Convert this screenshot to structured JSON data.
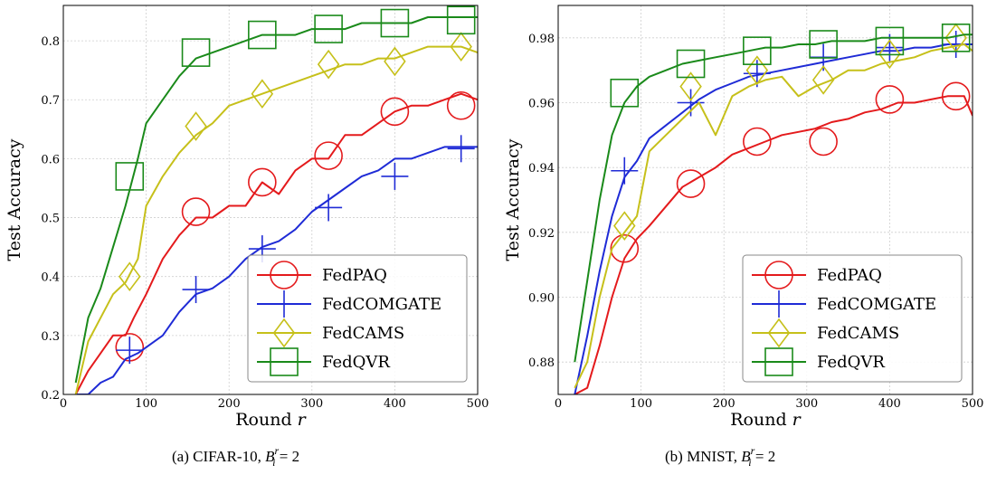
{
  "chart_data": [
    {
      "type": "line",
      "caption": "(a) CIFAR-10, B_i^r = 2",
      "caption_text": "(a) CIFAR-10, ",
      "caption_math": "B",
      "caption_sub": "i",
      "caption_sup": "r",
      "caption_eq": " = 2",
      "xlabel": "Round",
      "xlabel_var": "r",
      "ylabel": "Test Accuracy",
      "xlim": [
        0,
        500
      ],
      "ylim": [
        0.2,
        0.86
      ],
      "xticks": [
        0,
        100,
        200,
        300,
        400,
        500
      ],
      "yticks": [
        0.2,
        0.3,
        0.4,
        0.5,
        0.6,
        0.7,
        0.8
      ],
      "ytick_labels": [
        "0.2",
        "0.3",
        "0.4",
        "0.5",
        "0.6",
        "0.7",
        "0.8"
      ],
      "grid": true,
      "legend_position": "lower-right",
      "series": [
        {
          "name": "FedPAQ",
          "color": "#e41a1c",
          "marker": "circle",
          "x": [
            15,
            30,
            45,
            60,
            75,
            85,
            100,
            120,
            140,
            160,
            180,
            200,
            220,
            240,
            260,
            280,
            300,
            320,
            340,
            360,
            380,
            400,
            420,
            440,
            460,
            480,
            500
          ],
          "y": [
            0.2,
            0.24,
            0.27,
            0.3,
            0.3,
            0.33,
            0.37,
            0.43,
            0.47,
            0.5,
            0.5,
            0.52,
            0.52,
            0.56,
            0.54,
            0.58,
            0.6,
            0.6,
            0.64,
            0.64,
            0.66,
            0.68,
            0.69,
            0.69,
            0.7,
            0.71,
            0.7
          ],
          "markers_x": [
            80,
            160,
            240,
            320,
            400,
            480
          ],
          "markers_y": [
            0.28,
            0.51,
            0.56,
            0.605,
            0.68,
            0.69
          ]
        },
        {
          "name": "FedCOMGATE",
          "color": "#1f2bd6",
          "marker": "plus",
          "x": [
            15,
            30,
            45,
            60,
            75,
            90,
            100,
            120,
            140,
            160,
            180,
            200,
            220,
            240,
            260,
            280,
            300,
            320,
            340,
            360,
            380,
            400,
            420,
            440,
            460,
            480,
            500
          ],
          "y": [
            0.2,
            0.2,
            0.22,
            0.23,
            0.26,
            0.27,
            0.28,
            0.3,
            0.34,
            0.37,
            0.38,
            0.4,
            0.43,
            0.45,
            0.46,
            0.48,
            0.51,
            0.53,
            0.55,
            0.57,
            0.58,
            0.6,
            0.6,
            0.61,
            0.62,
            0.62,
            0.62
          ],
          "markers_x": [
            80,
            160,
            240,
            320,
            400,
            480
          ],
          "markers_y": [
            0.275,
            0.378,
            0.447,
            0.517,
            0.57,
            0.617
          ]
        },
        {
          "name": "FedCAMS",
          "color": "#c6c01a",
          "marker": "diamond",
          "x": [
            15,
            30,
            45,
            60,
            75,
            90,
            100,
            120,
            140,
            160,
            180,
            200,
            220,
            240,
            260,
            280,
            300,
            320,
            340,
            360,
            380,
            400,
            420,
            440,
            460,
            480,
            500
          ],
          "y": [
            0.2,
            0.29,
            0.33,
            0.37,
            0.39,
            0.43,
            0.52,
            0.57,
            0.61,
            0.64,
            0.66,
            0.69,
            0.7,
            0.71,
            0.72,
            0.73,
            0.74,
            0.75,
            0.76,
            0.76,
            0.77,
            0.77,
            0.78,
            0.79,
            0.79,
            0.79,
            0.78
          ],
          "markers_x": [
            80,
            160,
            240,
            320,
            400,
            480
          ],
          "markers_y": [
            0.4,
            0.655,
            0.71,
            0.76,
            0.765,
            0.79
          ]
        },
        {
          "name": "FedQVR",
          "color": "#1a8a1a",
          "marker": "square",
          "x": [
            15,
            30,
            45,
            60,
            75,
            90,
            100,
            120,
            140,
            160,
            180,
            200,
            220,
            240,
            260,
            280,
            300,
            320,
            340,
            360,
            380,
            400,
            420,
            440,
            460,
            480,
            500
          ],
          "y": [
            0.22,
            0.33,
            0.38,
            0.45,
            0.52,
            0.6,
            0.66,
            0.7,
            0.74,
            0.77,
            0.78,
            0.79,
            0.8,
            0.81,
            0.81,
            0.81,
            0.82,
            0.82,
            0.82,
            0.83,
            0.83,
            0.83,
            0.83,
            0.84,
            0.84,
            0.84,
            0.84
          ],
          "markers_x": [
            80,
            160,
            240,
            320,
            400,
            480
          ],
          "markers_y": [
            0.57,
            0.78,
            0.81,
            0.82,
            0.83,
            0.835
          ]
        }
      ]
    },
    {
      "type": "line",
      "caption": "(b) MNIST, B_i^r = 2",
      "caption_text": "(b) MNIST, ",
      "caption_math": "B",
      "caption_sub": "i",
      "caption_sup": "r",
      "caption_eq": " = 2",
      "xlabel": "Round",
      "xlabel_var": "r",
      "ylabel": "Test Accuracy",
      "xlim": [
        0,
        500
      ],
      "ylim": [
        0.87,
        0.99
      ],
      "xticks": [
        0,
        100,
        200,
        300,
        400,
        500
      ],
      "yticks": [
        0.88,
        0.9,
        0.92,
        0.94,
        0.96,
        0.98
      ],
      "ytick_labels": [
        "0.88",
        "0.90",
        "0.92",
        "0.94",
        "0.96",
        "0.98"
      ],
      "grid": true,
      "legend_position": "lower-right",
      "series": [
        {
          "name": "FedPAQ",
          "color": "#e41a1c",
          "marker": "circle",
          "x": [
            20,
            35,
            50,
            65,
            80,
            95,
            110,
            130,
            150,
            170,
            190,
            210,
            230,
            250,
            270,
            290,
            310,
            330,
            350,
            370,
            390,
            410,
            430,
            450,
            470,
            490,
            500
          ],
          "y": [
            0.87,
            0.872,
            0.885,
            0.9,
            0.912,
            0.918,
            0.922,
            0.928,
            0.934,
            0.937,
            0.94,
            0.944,
            0.946,
            0.948,
            0.95,
            0.951,
            0.952,
            0.954,
            0.955,
            0.957,
            0.958,
            0.96,
            0.96,
            0.961,
            0.962,
            0.962,
            0.956
          ],
          "markers_x": [
            80,
            160,
            240,
            320,
            400,
            480
          ],
          "markers_y": [
            0.915,
            0.935,
            0.948,
            0.948,
            0.961,
            0.962
          ]
        },
        {
          "name": "FedCOMGATE",
          "color": "#1f2bd6",
          "marker": "plus",
          "x": [
            20,
            35,
            50,
            65,
            80,
            95,
            110,
            130,
            150,
            170,
            190,
            210,
            230,
            250,
            270,
            290,
            310,
            330,
            350,
            370,
            390,
            410,
            430,
            450,
            470,
            490,
            500
          ],
          "y": [
            0.87,
            0.888,
            0.908,
            0.925,
            0.937,
            0.942,
            0.949,
            0.953,
            0.957,
            0.961,
            0.964,
            0.966,
            0.968,
            0.969,
            0.97,
            0.971,
            0.972,
            0.973,
            0.974,
            0.975,
            0.976,
            0.976,
            0.977,
            0.977,
            0.978,
            0.978,
            0.978
          ],
          "markers_x": [
            80,
            160,
            240,
            320,
            400,
            480
          ],
          "markers_y": [
            0.939,
            0.96,
            0.969,
            0.974,
            0.977,
            0.978
          ]
        },
        {
          "name": "FedCAMS",
          "color": "#c6c01a",
          "marker": "diamond",
          "x": [
            20,
            35,
            50,
            65,
            80,
            95,
            110,
            130,
            150,
            170,
            190,
            210,
            230,
            250,
            270,
            290,
            310,
            330,
            350,
            370,
            390,
            410,
            430,
            450,
            470,
            490,
            500
          ],
          "y": [
            0.872,
            0.88,
            0.9,
            0.915,
            0.92,
            0.925,
            0.945,
            0.95,
            0.955,
            0.96,
            0.95,
            0.962,
            0.965,
            0.967,
            0.968,
            0.962,
            0.965,
            0.967,
            0.97,
            0.97,
            0.972,
            0.973,
            0.974,
            0.976,
            0.977,
            0.978,
            0.976
          ],
          "markers_x": [
            80,
            160,
            240,
            320,
            400,
            480
          ],
          "markers_y": [
            0.922,
            0.965,
            0.97,
            0.967,
            0.975,
            0.98
          ]
        },
        {
          "name": "FedQVR",
          "color": "#1a8a1a",
          "marker": "square",
          "x": [
            20,
            35,
            50,
            65,
            80,
            95,
            110,
            130,
            150,
            170,
            190,
            210,
            230,
            250,
            270,
            290,
            310,
            330,
            350,
            370,
            390,
            410,
            430,
            450,
            470,
            490,
            500
          ],
          "y": [
            0.88,
            0.905,
            0.93,
            0.95,
            0.96,
            0.965,
            0.968,
            0.97,
            0.972,
            0.973,
            0.974,
            0.975,
            0.976,
            0.977,
            0.977,
            0.978,
            0.978,
            0.979,
            0.979,
            0.979,
            0.98,
            0.98,
            0.98,
            0.98,
            0.98,
            0.981,
            0.981
          ],
          "markers_x": [
            80,
            160,
            240,
            320,
            400,
            480
          ],
          "markers_y": [
            0.963,
            0.972,
            0.976,
            0.978,
            0.979,
            0.98
          ]
        }
      ]
    }
  ]
}
